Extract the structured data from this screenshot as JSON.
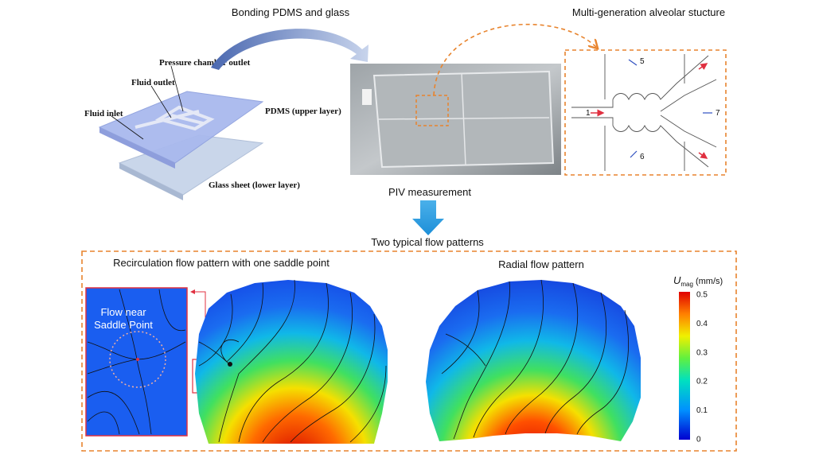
{
  "top": {
    "bonding_label": "Bonding PDMS and glass",
    "alveolar_label": "Multi-generation alveolar stucture",
    "device_labels": {
      "pressure_outlet": "Pressure chamber outlet",
      "fluid_outlet": "Fluid outlet",
      "fluid_inlet": "Fluid inlet",
      "pdms": "PDMS (upper layer)",
      "glass": "Glass sheet (lower layer)"
    },
    "alveolar_numbers": [
      "1",
      "5",
      "6",
      "7"
    ]
  },
  "piv_label": "PIV measurement",
  "bottom": {
    "title": "Two typical flow patterns",
    "left_title": "Recirculation flow pattern with one saddle point",
    "right_title": "Radial flow pattern",
    "inset_lines": [
      "Flow near",
      "Saddle Point"
    ],
    "colorbar": {
      "symbol": "U",
      "subscript": "mag",
      "unit": "(mm/s)",
      "ticks": [
        "0.5",
        "0.4",
        "0.3",
        "0.2",
        "0.1",
        "0"
      ]
    }
  }
}
